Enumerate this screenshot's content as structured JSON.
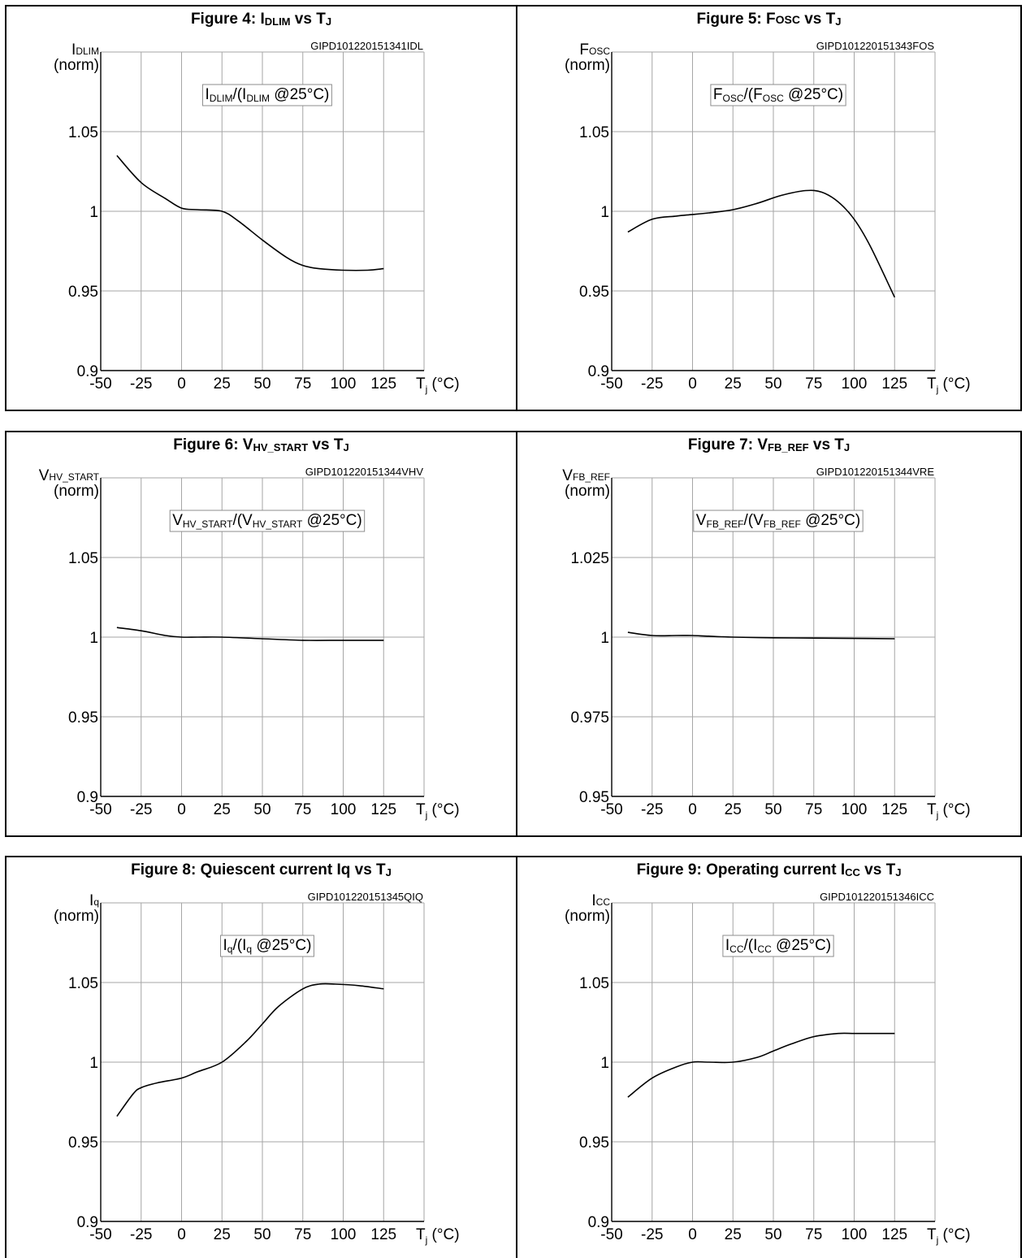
{
  "figures": [
    {
      "title_html": "Figure 4: I<sub>DLIM</sub> vs T<sub>J</sub>",
      "code": "GIPD101220151341IDL",
      "ylabel_main": "I",
      "ylabel_sub": "DLIM",
      "ylabel_norm": "(norm)",
      "legend_main": "I",
      "legend_sub": "DLIM",
      "legend_open": "/(I",
      "legend_sub2": "DLIM",
      "legend_tail": " @25°C)",
      "xunit_main": "T",
      "xunit_sub": "j",
      "xunit_tail": " (°C)"
    },
    {
      "title_html": "Figure 5: F<span class=\"sc\">OSC</span> vs T<sub>J</sub>",
      "code": "GIPD101220151343FOS",
      "ylabel_main": "F",
      "ylabel_sub": "OSC",
      "ylabel_norm": "(norm)",
      "legend_main": "F",
      "legend_sub": "OSC",
      "legend_open": "/(F",
      "legend_sub2": "OSC",
      "legend_tail": " @25°C)",
      "xunit_main": "T",
      "xunit_sub": "j",
      "xunit_tail": " (°C)"
    },
    {
      "title_html": "Figure 6: V<sub>HV_START</sub> vs T<sub>J</sub>",
      "code": "GIPD101220151344VHV",
      "ylabel_main": "V",
      "ylabel_sub": "HV_START",
      "ylabel_norm": "(norm)",
      "legend_main": "V",
      "legend_sub": "HV_START",
      "legend_open": "/(V",
      "legend_sub2": "HV_START",
      "legend_tail": " @25°C)",
      "xunit_main": "T",
      "xunit_sub": "j",
      "xunit_tail": " (°C)"
    },
    {
      "title_html": "Figure 7: V<sub>FB_REF</sub> vs T<sub>J</sub>",
      "code": "GIPD101220151344VRE",
      "ylabel_main": "V",
      "ylabel_sub": "FB_REF",
      "ylabel_norm": "(norm)",
      "legend_main": "V",
      "legend_sub": "FB_REF",
      "legend_open": "/(V",
      "legend_sub2": "FB_REF",
      "legend_tail": " @25°C)",
      "xunit_main": "T",
      "xunit_sub": "j",
      "xunit_tail": " (°C)"
    },
    {
      "title_html": "Figure 8: Quiescent current Iq vs T<sub>J</sub>",
      "code": "GIPD101220151345QIQ",
      "ylabel_main": "I",
      "ylabel_sub": "q",
      "ylabel_norm": "(norm)",
      "legend_main": "I",
      "legend_sub": "q",
      "legend_open": "/(I",
      "legend_sub2": "q",
      "legend_tail": " @25°C)",
      "xunit_main": "T",
      "xunit_sub": "j",
      "xunit_tail": " (°C)"
    },
    {
      "title_html": "Figure 9: Operating current I<sub>CC</sub> vs T<sub>J</sub>",
      "code": "GIPD101220151346ICC",
      "ylabel_main": "I",
      "ylabel_sub": "CC",
      "ylabel_norm": "(norm)",
      "legend_main": "I",
      "legend_sub": "CC",
      "legend_open": "/(I",
      "legend_sub2": "CC",
      "legend_tail": " @25°C)",
      "xunit_main": "T",
      "xunit_sub": "j",
      "xunit_tail": " (°C)"
    }
  ],
  "chart_data": [
    {
      "type": "line",
      "title": "Figure 4: IDLIM vs TJ",
      "xlabel": "Tj (°C)",
      "ylabel": "IDLIM (norm)",
      "xlim": [
        -50,
        150
      ],
      "ylim": [
        0.9,
        1.1
      ],
      "xticks": [
        -50,
        -25,
        0,
        25,
        50,
        75,
        100,
        125
      ],
      "xtick_labels": [
        "-50",
        "-25",
        "0",
        "25",
        "50",
        "75",
        "100",
        "125"
      ],
      "yticks": [
        0.9,
        0.95,
        1,
        1.05
      ],
      "ytick_labels": [
        "0.9",
        "0.95",
        "1",
        "1.05"
      ],
      "grid": true,
      "series": [
        {
          "name": "IDLIM/(IDLIM @25°C)",
          "x": [
            -40,
            -25,
            -10,
            0,
            10,
            25,
            35,
            50,
            65,
            75,
            85,
            100,
            115,
            125
          ],
          "y": [
            1.035,
            1.018,
            1.008,
            1.002,
            1.001,
            1.0,
            0.994,
            0.982,
            0.971,
            0.966,
            0.964,
            0.963,
            0.963,
            0.964
          ]
        }
      ]
    },
    {
      "type": "line",
      "title": "Figure 5: FOSC vs TJ",
      "xlabel": "Tj (°C)",
      "ylabel": "FOSC (norm)",
      "xlim": [
        -50,
        150
      ],
      "ylim": [
        0.9,
        1.1
      ],
      "xticks": [
        -50,
        -25,
        0,
        25,
        50,
        75,
        100,
        125
      ],
      "xtick_labels": [
        "-50",
        "-25",
        "0",
        "25",
        "50",
        "75",
        "100",
        "125"
      ],
      "yticks": [
        0.9,
        0.95,
        1,
        1.05
      ],
      "ytick_labels": [
        "0.9",
        "0.95",
        "1",
        "1.05"
      ],
      "grid": true,
      "series": [
        {
          "name": "FOSC/(FOSC @25°C)",
          "x": [
            -40,
            -25,
            -10,
            0,
            10,
            25,
            40,
            55,
            70,
            80,
            90,
            100,
            110,
            125
          ],
          "y": [
            0.987,
            0.995,
            0.997,
            0.998,
            0.999,
            1.001,
            1.005,
            1.01,
            1.013,
            1.012,
            1.006,
            0.995,
            0.978,
            0.946
          ]
        }
      ]
    },
    {
      "type": "line",
      "title": "Figure 6: VHV_START vs TJ",
      "xlabel": "Tj (°C)",
      "ylabel": "VHV_START (norm)",
      "xlim": [
        -50,
        150
      ],
      "ylim": [
        0.9,
        1.1
      ],
      "xticks": [
        -50,
        -25,
        0,
        25,
        50,
        75,
        100,
        125
      ],
      "xtick_labels": [
        "-50",
        "-25",
        "0",
        "25",
        "50",
        "75",
        "100",
        "125"
      ],
      "yticks": [
        0.9,
        0.95,
        1,
        1.05
      ],
      "ytick_labels": [
        "0.9",
        "0.95",
        "1",
        "1.05"
      ],
      "grid": true,
      "series": [
        {
          "name": "VHV_START/(VHV_START @25°C)",
          "x": [
            -40,
            -25,
            -10,
            0,
            10,
            25,
            50,
            75,
            100,
            125
          ],
          "y": [
            1.006,
            1.004,
            1.001,
            1.0,
            1.0,
            1.0,
            0.999,
            0.998,
            0.998,
            0.998
          ]
        }
      ]
    },
    {
      "type": "line",
      "title": "Figure 7: VFB_REF vs TJ",
      "xlabel": "Tj (°C)",
      "ylabel": "VFB_REF (norm)",
      "xlim": [
        -50,
        150
      ],
      "ylim": [
        0.95,
        1.05
      ],
      "xticks": [
        -50,
        -25,
        0,
        25,
        50,
        75,
        100,
        125
      ],
      "xtick_labels": [
        "-50",
        "-25",
        "0",
        "25",
        "50",
        "75",
        "100",
        "125"
      ],
      "yticks": [
        0.95,
        0.975,
        1,
        1.025
      ],
      "ytick_labels": [
        "0.95",
        "0.975",
        "1",
        "1.025"
      ],
      "grid": true,
      "series": [
        {
          "name": "VFB_REF/(VFB_REF @25°C)",
          "x": [
            -40,
            -25,
            -10,
            0,
            10,
            25,
            50,
            75,
            100,
            125
          ],
          "y": [
            1.0015,
            1.0005,
            1.0005,
            1.0005,
            1.0003,
            1.0,
            0.9998,
            0.9997,
            0.9996,
            0.9995
          ]
        }
      ]
    },
    {
      "type": "line",
      "title": "Figure 8: Quiescent current Iq vs TJ",
      "xlabel": "Tj (°C)",
      "ylabel": "Iq (norm)",
      "xlim": [
        -50,
        150
      ],
      "ylim": [
        0.9,
        1.1
      ],
      "xticks": [
        -50,
        -25,
        0,
        25,
        50,
        75,
        100,
        125
      ],
      "xtick_labels": [
        "-50",
        "-25",
        "0",
        "25",
        "50",
        "75",
        "100",
        "125"
      ],
      "yticks": [
        0.9,
        0.95,
        1,
        1.05
      ],
      "ytick_labels": [
        "0.9",
        "0.95",
        "1",
        "1.05"
      ],
      "grid": true,
      "series": [
        {
          "name": "Iq/(Iq @25°C)",
          "x": [
            -40,
            -30,
            -25,
            -15,
            0,
            10,
            25,
            40,
            50,
            60,
            75,
            85,
            95,
            110,
            125
          ],
          "y": [
            0.966,
            0.98,
            0.984,
            0.987,
            0.99,
            0.994,
            1.0,
            1.013,
            1.024,
            1.035,
            1.046,
            1.049,
            1.049,
            1.048,
            1.046
          ]
        }
      ]
    },
    {
      "type": "line",
      "title": "Figure 9: Operating current ICC vs TJ",
      "xlabel": "Tj (°C)",
      "ylabel": "ICC (norm)",
      "xlim": [
        -50,
        150
      ],
      "ylim": [
        0.9,
        1.1
      ],
      "xticks": [
        -50,
        -25,
        0,
        25,
        50,
        75,
        100,
        125
      ],
      "xtick_labels": [
        "-50",
        "-25",
        "0",
        "25",
        "50",
        "75",
        "100",
        "125"
      ],
      "yticks": [
        0.9,
        0.95,
        1,
        1.05
      ],
      "ytick_labels": [
        "0.9",
        "0.95",
        "1",
        "1.05"
      ],
      "grid": true,
      "series": [
        {
          "name": "ICC/(ICC @25°C)",
          "x": [
            -40,
            -25,
            -10,
            0,
            10,
            25,
            40,
            50,
            60,
            75,
            90,
            100,
            110,
            125
          ],
          "y": [
            0.978,
            0.99,
            0.997,
            1.0,
            1.0,
            1.0,
            1.003,
            1.007,
            1.011,
            1.016,
            1.018,
            1.018,
            1.018,
            1.018
          ]
        }
      ]
    }
  ]
}
